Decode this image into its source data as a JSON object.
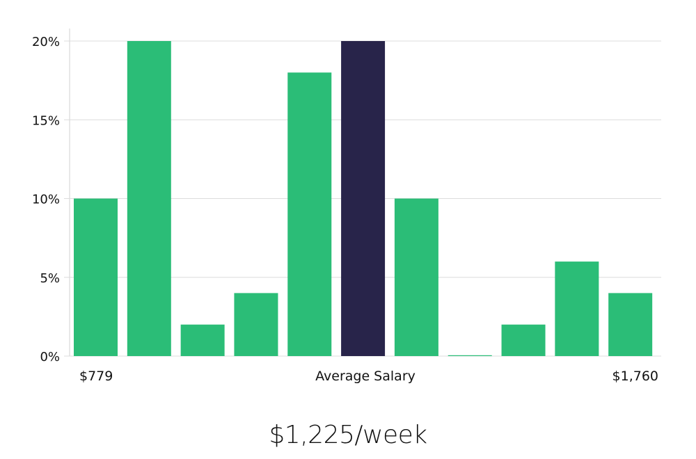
{
  "chart_data": {
    "type": "bar",
    "title": "",
    "xlabel": "",
    "ylabel": "",
    "ylim": [
      0,
      20
    ],
    "y_ticks": [
      0,
      5,
      10,
      15,
      20
    ],
    "y_tick_labels": [
      "0%",
      "5%",
      "10%",
      "15%",
      "20%"
    ],
    "grid": true,
    "values": [
      10,
      20,
      2,
      4,
      18,
      20,
      10,
      0,
      2,
      6,
      4
    ],
    "highlight_index": 5,
    "x_labels": {
      "min": "$779",
      "middle": "Average Salary",
      "max": "$1,760"
    },
    "colors": {
      "bar": "#2bbd77",
      "highlight": "#28244a"
    }
  },
  "summary": {
    "average_salary": "$1,225/week"
  }
}
